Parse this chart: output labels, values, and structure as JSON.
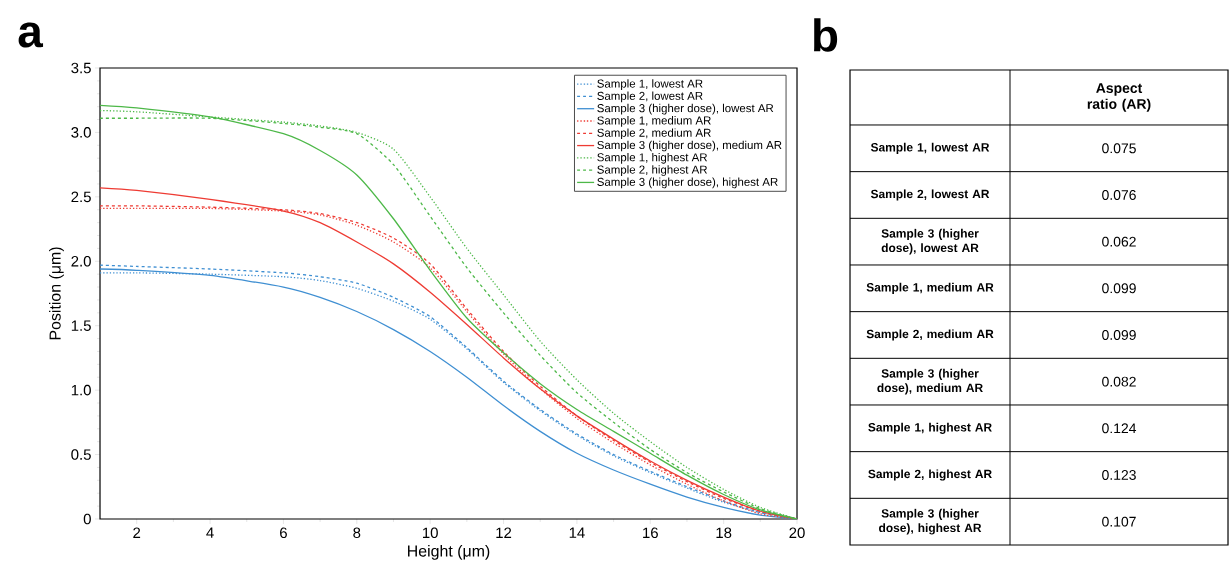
{
  "chart_data": [
    {
      "type": "line",
      "title": "a",
      "xlabel": "Height (μm)",
      "ylabel": "Position (μm)",
      "x": [
        1,
        2,
        4,
        6,
        7,
        8,
        9,
        10,
        11,
        12,
        13,
        14,
        15,
        16,
        17,
        18,
        19,
        20
      ],
      "xlim": [
        1,
        20
      ],
      "xticks": [
        2,
        4,
        6,
        8,
        10,
        12,
        14,
        16,
        18,
        20
      ],
      "ylim": [
        0,
        3.5
      ],
      "yticks": [
        0,
        0.5,
        {
          "value": 1,
          "label": "1.0"
        },
        1.5,
        {
          "value": 2,
          "label": "2.0"
        },
        2.5,
        {
          "value": 3,
          "label": "3.0"
        },
        3.5
      ],
      "grid": false,
      "legend": "top right",
      "series": [
        {
          "name": "Sample 1, lowest AR",
          "color": "#3f8fd2",
          "line_style": "dotted",
          "values": [
            1.91,
            1.91,
            1.9,
            1.88,
            1.85,
            1.79,
            1.69,
            1.55,
            1.32,
            1.06,
            0.84,
            0.65,
            0.49,
            0.36,
            0.24,
            0.13,
            0.05,
            0
          ]
        },
        {
          "name": "Sample 2, lowest AR",
          "color": "#3f8fd2",
          "line_style": "dashed",
          "values": [
            1.97,
            1.96,
            1.94,
            1.91,
            1.88,
            1.83,
            1.72,
            1.57,
            1.33,
            1.07,
            0.85,
            0.66,
            0.5,
            0.37,
            0.25,
            0.14,
            0.05,
            0
          ]
        },
        {
          "name": "Sample 3 (higher dose), lowest AR",
          "color": "#3f8fd2",
          "line_style": "solid",
          "values": [
            1.94,
            1.93,
            1.89,
            1.8,
            1.72,
            1.61,
            1.47,
            1.3,
            1.1,
            0.88,
            0.68,
            0.51,
            0.38,
            0.27,
            0.17,
            0.09,
            0.03,
            0
          ]
        },
        {
          "name": "Sample 1, medium AR",
          "color": "#ee3b33",
          "line_style": "dotted",
          "values": [
            2.41,
            2.41,
            2.41,
            2.39,
            2.36,
            2.28,
            2.15,
            1.95,
            1.61,
            1.28,
            1.01,
            0.78,
            0.59,
            0.42,
            0.27,
            0.14,
            0.04,
            0
          ]
        },
        {
          "name": "Sample 2, medium AR",
          "color": "#ee3b33",
          "line_style": "dashed",
          "values": [
            2.43,
            2.43,
            2.42,
            2.4,
            2.37,
            2.3,
            2.18,
            1.98,
            1.63,
            1.3,
            1.03,
            0.8,
            0.61,
            0.44,
            0.29,
            0.16,
            0.06,
            0
          ]
        },
        {
          "name": "Sample 3 (higher dose), medium AR",
          "color": "#ee3b33",
          "line_style": "solid",
          "values": [
            2.57,
            2.55,
            2.48,
            2.39,
            2.3,
            2.15,
            1.98,
            1.76,
            1.51,
            1.25,
            1.01,
            0.8,
            0.62,
            0.45,
            0.3,
            0.17,
            0.06,
            0
          ]
        },
        {
          "name": "Sample 1, highest AR",
          "color": "#4db848",
          "line_style": "dotted",
          "values": [
            3.17,
            3.16,
            3.12,
            3.08,
            3.05,
            3.0,
            2.87,
            2.5,
            2.1,
            1.74,
            1.38,
            1.08,
            0.82,
            0.6,
            0.4,
            0.23,
            0.09,
            0
          ]
        },
        {
          "name": "Sample 2, highest AR",
          "color": "#4db848",
          "line_style": "dashed",
          "values": [
            3.11,
            3.11,
            3.11,
            3.07,
            3.04,
            2.99,
            2.75,
            2.35,
            1.95,
            1.6,
            1.27,
            0.98,
            0.75,
            0.54,
            0.36,
            0.21,
            0.08,
            0
          ]
        },
        {
          "name": "Sample 3 (higher dose), highest AR",
          "color": "#4db848",
          "line_style": "solid",
          "values": [
            3.21,
            3.19,
            3.12,
            2.99,
            2.86,
            2.67,
            2.33,
            1.93,
            1.56,
            1.29,
            1.05,
            0.85,
            0.68,
            0.51,
            0.34,
            0.19,
            0.07,
            0
          ]
        }
      ]
    },
    {
      "type": "other",
      "title": "b",
      "subtitle": "Aspect ratio (AR)",
      "categories": [
        "Sample 1, lowest AR",
        "Sample 2, lowest AR",
        "Sample 3 (higher dose), lowest AR",
        "Sample 1, medium AR",
        "Sample 2, medium AR",
        "Sample 3 (higher dose), medium AR",
        "Sample 1, highest AR",
        "Sample 2, highest AR",
        "Sample 3 (higher dose), highest AR"
      ],
      "values": [
        0.075,
        0.076,
        0.062,
        0.099,
        0.099,
        0.082,
        0.124,
        0.123,
        0.107
      ],
      "data_labels": true
    }
  ]
}
